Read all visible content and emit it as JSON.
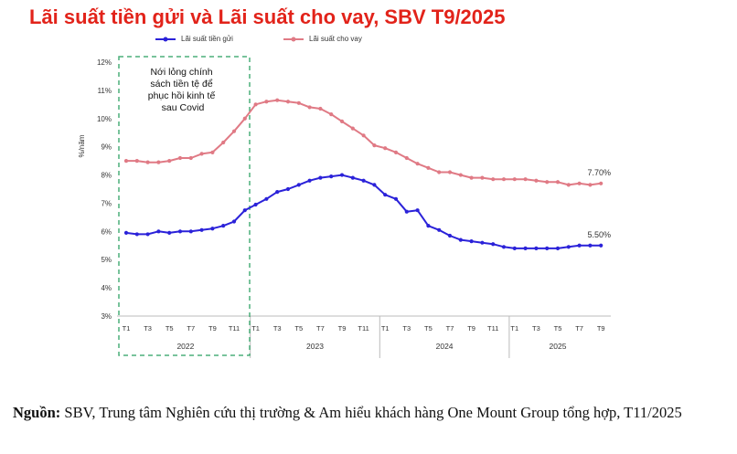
{
  "title": "Lãi suất tiền gửi và Lãi suất cho vay, SBV T9/2025",
  "annotation": [
    "Nới lỏng chính",
    "sách tiền tệ để",
    "phục hồi kinh tế",
    "sau Covid"
  ],
  "source": {
    "label": "Nguồn:",
    "text": "SBV, Trung tâm Nghiên cứu thị trường & Am hiểu khách hàng One Mount Group tổng hợp, T11/2025"
  },
  "colors": {
    "deposit": "#2b22d9",
    "lending": "#e07a85",
    "title": "#e2231a",
    "annotation_box": "#4caf7a"
  },
  "chart_data": {
    "type": "line",
    "ylabel": "%/năm",
    "ylim": [
      3,
      12
    ],
    "yticks": [
      "3%",
      "4%",
      "5%",
      "6%",
      "7%",
      "8%",
      "9%",
      "10%",
      "11%",
      "12%"
    ],
    "xtick_labels": [
      "T1",
      "T3",
      "T5",
      "T7",
      "T9",
      "T11",
      "T1",
      "T3",
      "T5",
      "T7",
      "T9",
      "T11",
      "T1",
      "T3",
      "T5",
      "T7",
      "T9",
      "T11",
      "T1",
      "T3",
      "T5",
      "T7",
      "T9"
    ],
    "years": [
      "2022",
      "2023",
      "2024",
      "2025"
    ],
    "legend_position": "top",
    "grid": false,
    "x": [
      "2022-01",
      "2022-02",
      "2022-03",
      "2022-04",
      "2022-05",
      "2022-06",
      "2022-07",
      "2022-08",
      "2022-09",
      "2022-10",
      "2022-11",
      "2022-12",
      "2023-01",
      "2023-02",
      "2023-03",
      "2023-04",
      "2023-05",
      "2023-06",
      "2023-07",
      "2023-08",
      "2023-09",
      "2023-10",
      "2023-11",
      "2023-12",
      "2024-01",
      "2024-02",
      "2024-03",
      "2024-04",
      "2024-05",
      "2024-06",
      "2024-07",
      "2024-08",
      "2024-09",
      "2024-10",
      "2024-11",
      "2024-12",
      "2025-01",
      "2025-02",
      "2025-03",
      "2025-04",
      "2025-05",
      "2025-06",
      "2025-07",
      "2025-08",
      "2025-09"
    ],
    "series": [
      {
        "name": "Lãi suất tiền gửi",
        "end_label": "5.50%",
        "values": [
          5.95,
          5.9,
          5.9,
          6.0,
          5.95,
          6.0,
          6.0,
          6.05,
          6.1,
          6.2,
          6.35,
          6.75,
          6.95,
          7.15,
          7.4,
          7.5,
          7.65,
          7.8,
          7.9,
          7.95,
          8.0,
          7.9,
          7.8,
          7.65,
          7.3,
          7.15,
          6.7,
          6.75,
          6.2,
          6.05,
          5.85,
          5.7,
          5.65,
          5.6,
          5.55,
          5.45,
          5.4,
          5.4,
          5.4,
          5.4,
          5.4,
          5.45,
          5.5,
          5.5,
          5.5
        ]
      },
      {
        "name": "Lãi suất cho vay",
        "end_label": "7.70%",
        "values": [
          8.5,
          8.5,
          8.45,
          8.45,
          8.5,
          8.6,
          8.6,
          8.75,
          8.8,
          9.15,
          9.55,
          10.0,
          10.5,
          10.6,
          10.65,
          10.6,
          10.55,
          10.4,
          10.35,
          10.15,
          9.9,
          9.65,
          9.4,
          9.05,
          8.95,
          8.8,
          8.6,
          8.4,
          8.25,
          8.1,
          8.1,
          8.0,
          7.9,
          7.9,
          7.85,
          7.85,
          7.85,
          7.85,
          7.8,
          7.75,
          7.75,
          7.65,
          7.7,
          7.65,
          7.7
        ]
      }
    ]
  }
}
